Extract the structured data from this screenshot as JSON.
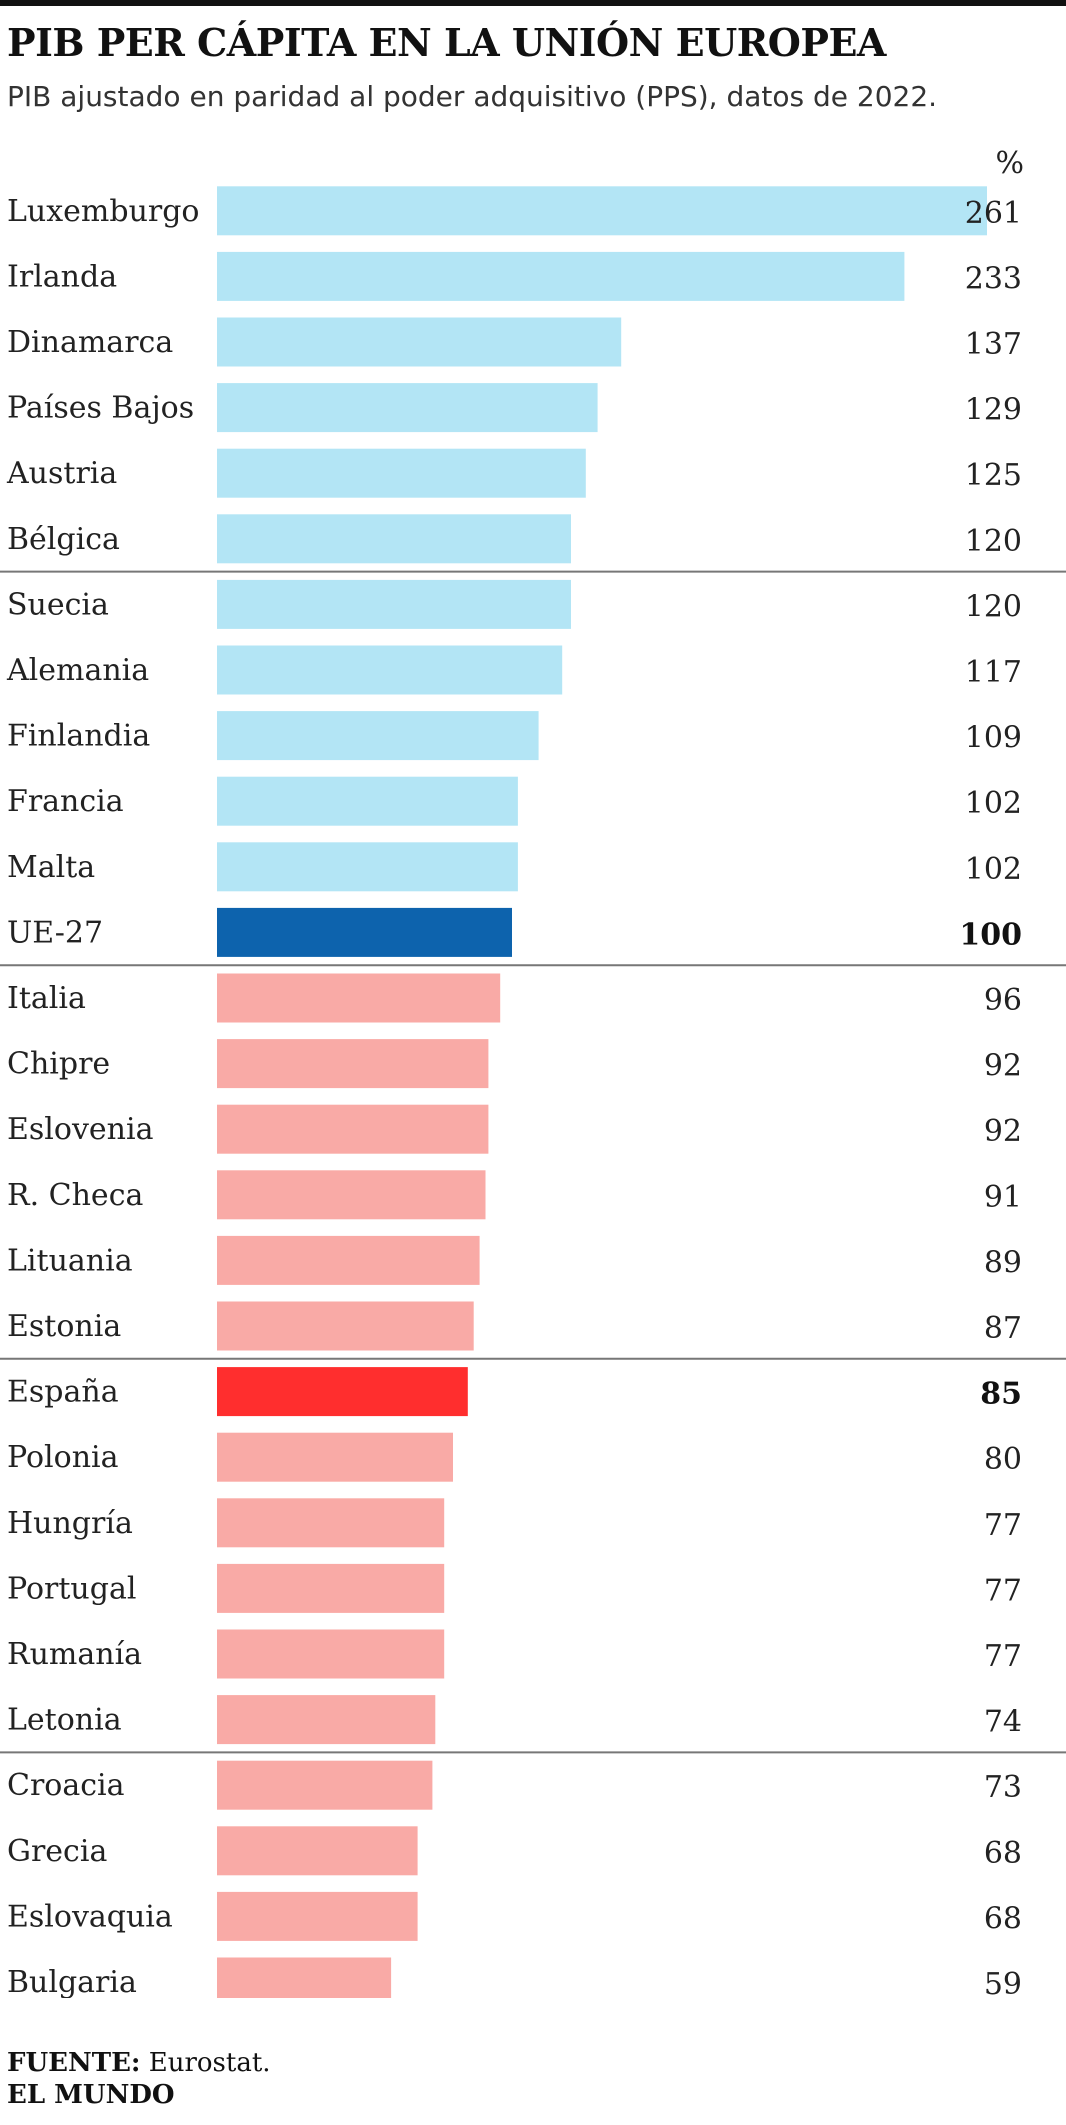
{
  "header": {
    "title": "PIB PER CÁPITA EN LA UNIÓN EUROPEA",
    "subtitle": "PIB ajustado en paridad al poder adquisitivo (PPS), datos de 2022.",
    "unit": "%"
  },
  "footer": {
    "source_label": "FUENTE:",
    "source_value": "Eurostat.",
    "brand": "EL MUNDO"
  },
  "colors": {
    "above": "#b3e5f5",
    "eu": "#0d63ad",
    "below": "#f9aaa6",
    "spain": "#ff2e2e",
    "separator": "#777777"
  },
  "chart_data": {
    "type": "bar",
    "orientation": "horizontal",
    "title": "PIB PER CÁPITA EN LA UNIÓN EUROPEA",
    "subtitle": "PIB ajustado en paridad al poder adquisitivo (PPS), datos de 2022.",
    "unit": "%",
    "xlim": [
      0,
      261
    ],
    "grid": false,
    "separators_after": [
      "Bélgica",
      "UE-27",
      "Estonia",
      "Letonia"
    ],
    "highlighted": [
      "UE-27",
      "España"
    ],
    "categories": [
      "Luxemburgo",
      "Irlanda",
      "Dinamarca",
      "Países Bajos",
      "Austria",
      "Bélgica",
      "Suecia",
      "Alemania",
      "Finlandia",
      "Francia",
      "Malta",
      "UE-27",
      "Italia",
      "Chipre",
      "Eslovenia",
      "R. Checa",
      "Lituania",
      "Estonia",
      "España",
      "Polonia",
      "Hungría",
      "Portugal",
      "Rumanía",
      "Letonia",
      "Croacia",
      "Grecia",
      "Eslovaquia",
      "Bulgaria"
    ],
    "values": [
      261,
      233,
      137,
      129,
      125,
      120,
      120,
      117,
      109,
      102,
      102,
      100,
      96,
      92,
      92,
      91,
      89,
      87,
      85,
      80,
      77,
      77,
      77,
      74,
      73,
      68,
      68,
      59
    ]
  }
}
